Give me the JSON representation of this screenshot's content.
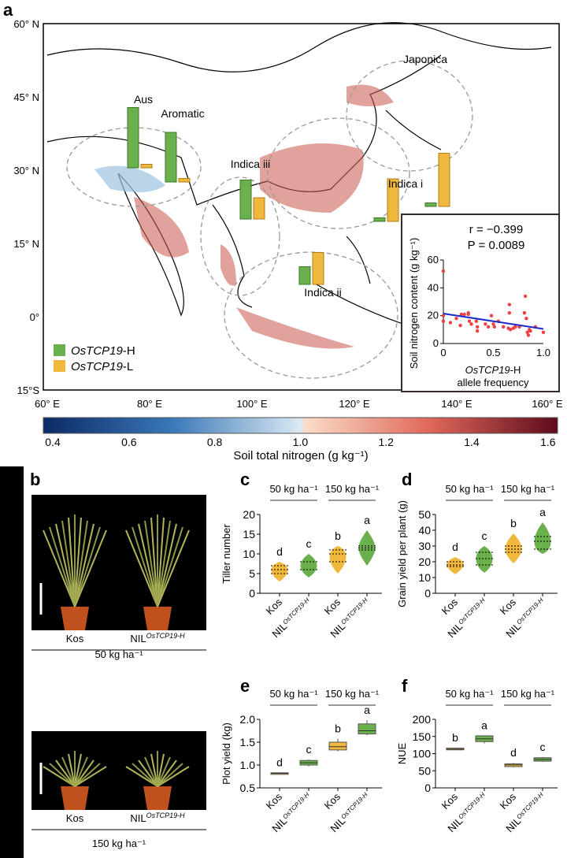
{
  "panel_labels": {
    "a": "a",
    "b": "b",
    "c": "c",
    "d": "d",
    "e": "e",
    "f": "f"
  },
  "map": {
    "lat_ticks": [
      "60° N",
      "45° N",
      "30° N",
      "15° N",
      "0°",
      "15°S"
    ],
    "lon_ticks": [
      "60° E",
      "80° E",
      "100° E",
      "120° E",
      "140° E",
      "160° E"
    ],
    "groups": [
      {
        "name": "Aus",
        "H": 0.85,
        "L": 0.05
      },
      {
        "name": "Aromatic",
        "H": 0.7,
        "L": 0.05
      },
      {
        "name": "Indica iii",
        "H": 0.55,
        "L": 0.3
      },
      {
        "name": "Japonica",
        "H": 0.05,
        "L": 0.75
      },
      {
        "name": "Indica i",
        "H": 0.05,
        "L": 0.6
      },
      {
        "name": "Indica ii",
        "H": 0.25,
        "L": 0.45
      }
    ],
    "legend": [
      {
        "gene": "OsTCP19",
        "suffix": "-H",
        "color": "#6ab04c"
      },
      {
        "gene": "OsTCP19",
        "suffix": "-L",
        "color": "#f0b83c"
      }
    ],
    "colorbar": {
      "ticks": [
        "0.4",
        "0.6",
        "0.8",
        "1.0",
        "1.2",
        "1.4",
        "1.6"
      ],
      "label": "Soil total nitrogen (g kg⁻¹)"
    }
  },
  "inset": {
    "r_text": "r = −0.399",
    "p_text": "P = 0.0089",
    "ylabel": "Soil nitrogen content (g kg⁻¹)",
    "xlabel_gene": "OsTCP19",
    "xlabel_suffix": "-H",
    "xlabel2": "allele frequency",
    "yticks": [
      "0",
      "20",
      "40",
      "60"
    ],
    "xticks": [
      "0",
      "0.5",
      "1.0"
    ],
    "points": [
      [
        0,
        52
      ],
      [
        0,
        16
      ],
      [
        0,
        20
      ],
      [
        0.07,
        15
      ],
      [
        0.13,
        18
      ],
      [
        0.17,
        13
      ],
      [
        0.18,
        21
      ],
      [
        0.21,
        21
      ],
      [
        0.25,
        22
      ],
      [
        0.25,
        21
      ],
      [
        0.26,
        16
      ],
      [
        0.28,
        14
      ],
      [
        0.33,
        16
      ],
      [
        0.34,
        12
      ],
      [
        0.34,
        9
      ],
      [
        0.42,
        14
      ],
      [
        0.45,
        12
      ],
      [
        0.48,
        20
      ],
      [
        0.5,
        14
      ],
      [
        0.51,
        12
      ],
      [
        0.55,
        16
      ],
      [
        0.6,
        12
      ],
      [
        0.65,
        11
      ],
      [
        0.66,
        28
      ],
      [
        0.66,
        22
      ],
      [
        0.67,
        10
      ],
      [
        0.7,
        11
      ],
      [
        0.72,
        12
      ],
      [
        0.76,
        12
      ],
      [
        0.81,
        22
      ],
      [
        0.82,
        34
      ],
      [
        0.83,
        18
      ],
      [
        0.84,
        8
      ],
      [
        0.85,
        6
      ],
      [
        0.86,
        10
      ],
      [
        0.87,
        9
      ],
      [
        0.92,
        12
      ],
      [
        1.0,
        8
      ]
    ],
    "fit": [
      [
        0,
        21.5
      ],
      [
        1,
        10.5
      ]
    ]
  },
  "panel_b": {
    "top_group": "50 kg ha⁻¹",
    "bottom_group": "150 kg ha⁻¹",
    "kos": "Kos",
    "nil": "NIL",
    "nil_sup": "OsTCP19-H"
  },
  "chart_data": [
    {
      "id": "c",
      "type": "violin",
      "ylabel": "Tiller number",
      "ylim": [
        0,
        20
      ],
      "yticks": [
        "0",
        "5",
        "10",
        "15",
        "20"
      ],
      "groups": [
        "50 kg ha⁻¹",
        "150 kg ha⁻¹"
      ],
      "categories": [
        "Kos",
        "NILOsTCP19-H",
        "Kos",
        "NILOsTCP19-H"
      ],
      "median": [
        6,
        6,
        10,
        11.5
      ],
      "q1": [
        5,
        6,
        8,
        11
      ],
      "q3": [
        7,
        8,
        11,
        12
      ],
      "min": [
        3,
        4,
        5,
        7
      ],
      "max": [
        8,
        10,
        12,
        16
      ],
      "letters": [
        "d",
        "c",
        "b",
        "a"
      ]
    },
    {
      "id": "d",
      "type": "violin",
      "ylabel": "Grain yield per plant (g)",
      "ylim": [
        0,
        50
      ],
      "yticks": [
        "0",
        "10",
        "20",
        "30",
        "40",
        "50"
      ],
      "groups": [
        "50 kg ha⁻¹",
        "150 kg ha⁻¹"
      ],
      "categories": [
        "Kos",
        "NILOsTCP19-H",
        "Kos",
        "NILOsTCP19-H"
      ],
      "median": [
        18,
        22,
        28,
        33
      ],
      "q1": [
        17,
        18,
        26,
        28
      ],
      "q3": [
        20,
        26,
        30,
        36
      ],
      "min": [
        12,
        13,
        19,
        25
      ],
      "max": [
        23,
        30,
        38,
        45
      ],
      "letters": [
        "d",
        "c",
        "b",
        "a"
      ]
    },
    {
      "id": "e",
      "type": "box",
      "ylabel": "Plot yield (kg)",
      "ylim": [
        0.5,
        2.0
      ],
      "yticks": [
        "0.5",
        "1.0",
        "1.5",
        "2.0"
      ],
      "groups": [
        "50 kg ha⁻¹",
        "150 kg ha⁻¹"
      ],
      "categories": [
        "Kos",
        "NILOsTCP19-H",
        "Kos",
        "NILOsTCP19-H"
      ],
      "median": [
        0.82,
        1.05,
        1.4,
        1.75
      ],
      "q1": [
        0.81,
        1.0,
        1.33,
        1.68
      ],
      "q3": [
        0.83,
        1.1,
        1.5,
        1.9
      ],
      "min": [
        0.8,
        0.97,
        1.3,
        1.65
      ],
      "max": [
        0.84,
        1.12,
        1.58,
        1.98
      ],
      "letters": [
        "d",
        "c",
        "b",
        "a"
      ]
    },
    {
      "id": "f",
      "type": "box",
      "ylabel": "NUE",
      "ylim": [
        0,
        200
      ],
      "yticks": [
        "0",
        "50",
        "100",
        "150",
        "200"
      ],
      "groups": [
        "50 kg ha⁻¹",
        "150 kg ha⁻¹"
      ],
      "categories": [
        "Kos",
        "NILOsTCP19-H",
        "Kos",
        "NILOsTCP19-H"
      ],
      "median": [
        113,
        143,
        67,
        83
      ],
      "q1": [
        111,
        135,
        62,
        78
      ],
      "q3": [
        116,
        152,
        70,
        88
      ],
      "min": [
        110,
        130,
        60,
        76
      ],
      "max": [
        117,
        153,
        73,
        90
      ],
      "letters": [
        "b",
        "a",
        "d",
        "c"
      ]
    }
  ]
}
